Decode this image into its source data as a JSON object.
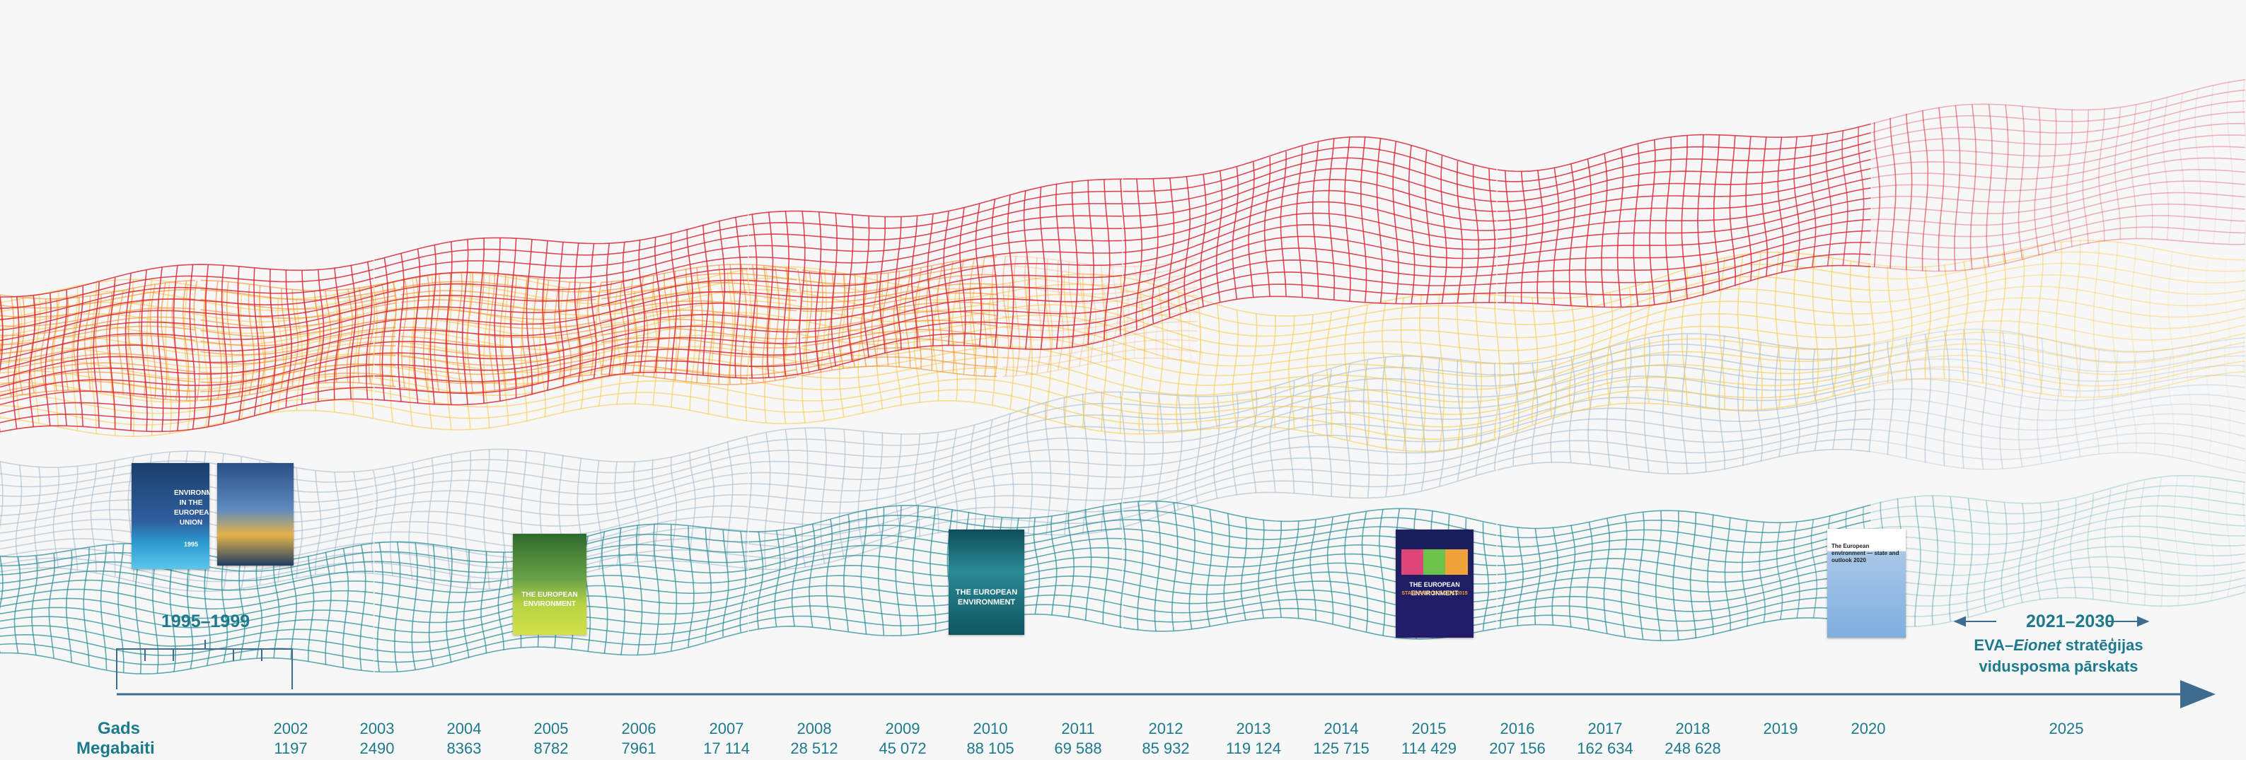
{
  "labels": {
    "range_start": "1995–1999",
    "range_end": "2021–2030",
    "strategy_prefix": "EVA–",
    "strategy_italic": "Eionet",
    "strategy_suffix": " stratēģijas",
    "strategy_line2": "vidusposma pārskats",
    "year_row": "Gads",
    "mb_row": "Megabaiti"
  },
  "timeline": [
    {
      "year": "2002",
      "mb": "1197"
    },
    {
      "year": "2003",
      "mb": "2490"
    },
    {
      "year": "2004",
      "mb": "8363"
    },
    {
      "year": "2005",
      "mb": "8782"
    },
    {
      "year": "2006",
      "mb": "7961"
    },
    {
      "year": "2007",
      "mb": "17 114"
    },
    {
      "year": "2008",
      "mb": "28 512"
    },
    {
      "year": "2009",
      "mb": "45 072"
    },
    {
      "year": "2010",
      "mb": "88 105"
    },
    {
      "year": "2011",
      "mb": "69 588"
    },
    {
      "year": "2012",
      "mb": "85 932"
    },
    {
      "year": "2013",
      "mb": "119 124"
    },
    {
      "year": "2014",
      "mb": "125 715"
    },
    {
      "year": "2015",
      "mb": "114 429"
    },
    {
      "year": "2016",
      "mb": "207 156"
    },
    {
      "year": "2017",
      "mb": "162 634"
    },
    {
      "year": "2018",
      "mb": "248 628"
    },
    {
      "year": "2019",
      "mb": ""
    },
    {
      "year": "2020",
      "mb": ""
    },
    {
      "year": "2025",
      "mb": ""
    }
  ],
  "covers": {
    "c1995_title": "ENVIRONMENT IN THE EUROPEAN UNION",
    "c1995_year": "1995",
    "c2005_title": "THE EUROPEAN ENVIRONMENT",
    "c2010_title": "THE EUROPEAN ENVIRONMENT",
    "c2015_title": "THE EUROPEAN ENVIRONMENT",
    "c2015_sub": "STATE AND OUTLOOK 2015",
    "c2020_title": "The European environment — state and outlook 2020"
  },
  "colors": {
    "accent": "#1d7a8c",
    "axis": "#3d6c8f",
    "red": "#d8283b",
    "orange": "#f08a2a",
    "yellow": "#f7c73a",
    "blue": "#9db6cc",
    "teal": "#2e8f98"
  }
}
